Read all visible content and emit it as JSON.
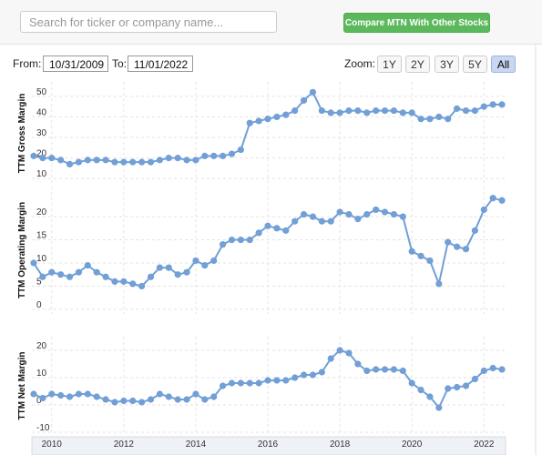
{
  "search_placeholder": "Search for ticker or company name...",
  "compare_button": "Compare MTN With Other Stocks",
  "from_label": "From:",
  "from_date": "10/31/2009",
  "to_label": "To:",
  "to_date": "11/01/2022",
  "zoom_label": "Zoom:",
  "zoom_buttons": [
    "1Y",
    "2Y",
    "3Y",
    "5Y",
    "All"
  ],
  "chart_data": [
    {
      "type": "line",
      "y_label": "TTM Gross Margin",
      "color": "#719fd6",
      "grid": true,
      "x": [
        2009.5,
        2009.75,
        2010,
        2010.25,
        2010.5,
        2010.75,
        2011,
        2011.25,
        2011.5,
        2011.75,
        2012,
        2012.25,
        2012.5,
        2012.75,
        2013,
        2013.25,
        2013.5,
        2013.75,
        2014,
        2014.25,
        2014.5,
        2014.75,
        2015,
        2015.25,
        2015.5,
        2015.75,
        2016,
        2016.25,
        2016.5,
        2016.75,
        2017,
        2017.25,
        2017.5,
        2017.75,
        2018,
        2018.25,
        2018.5,
        2018.75,
        2019,
        2019.25,
        2019.5,
        2019.75,
        2020,
        2020.25,
        2020.5,
        2020.75,
        2021,
        2021.25,
        2021.5,
        2021.75,
        2022,
        2022.25,
        2022.5
      ],
      "values": [
        21,
        20,
        20,
        19,
        17,
        18,
        19,
        19,
        19,
        18,
        18,
        18,
        18,
        18,
        19,
        20,
        20,
        19,
        19,
        21,
        21,
        21,
        22,
        24,
        37,
        38,
        39,
        40,
        41,
        43,
        48,
        52,
        43,
        42,
        42,
        43,
        43,
        42,
        43,
        43,
        43,
        42,
        42,
        39,
        39,
        40,
        39,
        44,
        43,
        43,
        45,
        46,
        46
      ],
      "xlim": [
        2009.45,
        2022.6
      ],
      "xticks": [
        2010,
        2012,
        2014,
        2016,
        2018,
        2020,
        2022
      ],
      "ylim": [
        7,
        57
      ],
      "yticks": [
        10,
        20,
        30,
        40,
        50
      ]
    },
    {
      "type": "line",
      "y_label": "TTM Operating Margin",
      "color": "#719fd6",
      "grid": true,
      "x": [
        2009.5,
        2009.75,
        2010,
        2010.25,
        2010.5,
        2010.75,
        2011,
        2011.25,
        2011.5,
        2011.75,
        2012,
        2012.25,
        2012.5,
        2012.75,
        2013,
        2013.25,
        2013.5,
        2013.75,
        2014,
        2014.25,
        2014.5,
        2014.75,
        2015,
        2015.25,
        2015.5,
        2015.75,
        2016,
        2016.25,
        2016.5,
        2016.75,
        2017,
        2017.25,
        2017.5,
        2017.75,
        2018,
        2018.25,
        2018.5,
        2018.75,
        2019,
        2019.25,
        2019.5,
        2019.75,
        2020,
        2020.25,
        2020.5,
        2020.75,
        2021,
        2021.25,
        2021.5,
        2021.75,
        2022,
        2022.25,
        2022.5
      ],
      "values": [
        10,
        7,
        8,
        7.5,
        7,
        8,
        9.5,
        8,
        7,
        6,
        6,
        5.5,
        5,
        7,
        9,
        9,
        7.5,
        8,
        10.5,
        9.5,
        10.5,
        14,
        15,
        15,
        15,
        16.5,
        18,
        17.5,
        17,
        19,
        20.5,
        20,
        19,
        19,
        21,
        20.5,
        19.5,
        20.5,
        21.5,
        21,
        20.5,
        20,
        12.5,
        11.5,
        10.5,
        5.5,
        14.5,
        13.5,
        13,
        17,
        21.5,
        24,
        23.5
      ],
      "xlim": [
        2009.45,
        2022.6
      ],
      "xticks": [
        2010,
        2012,
        2014,
        2016,
        2018,
        2020,
        2022
      ],
      "ylim": [
        -1,
        26.5
      ],
      "yticks": [
        0,
        5,
        10,
        15,
        20
      ]
    },
    {
      "type": "line",
      "y_label": "TTM Net Margin",
      "color": "#719fd6",
      "grid": true,
      "x": [
        2009.5,
        2009.75,
        2010,
        2010.25,
        2010.5,
        2010.75,
        2011,
        2011.25,
        2011.5,
        2011.75,
        2012,
        2012.25,
        2012.5,
        2012.75,
        2013,
        2013.25,
        2013.5,
        2013.75,
        2014,
        2014.25,
        2014.5,
        2014.75,
        2015,
        2015.25,
        2015.5,
        2015.75,
        2016,
        2016.25,
        2016.5,
        2016.75,
        2017,
        2017.25,
        2017.5,
        2017.75,
        2018,
        2018.25,
        2018.5,
        2018.75,
        2019,
        2019.25,
        2019.5,
        2019.75,
        2020,
        2020.25,
        2020.5,
        2020.75,
        2021,
        2021.25,
        2021.5,
        2021.75,
        2022,
        2022.25,
        2022.5
      ],
      "values": [
        4,
        2.5,
        4,
        3.5,
        3,
        4,
        4,
        3,
        2,
        1,
        1.5,
        1.5,
        1,
        2,
        4,
        3,
        2,
        2,
        4,
        2,
        3,
        7,
        8,
        8,
        8,
        8,
        9,
        9,
        9,
        10,
        11,
        11,
        12,
        17,
        20,
        19,
        15,
        12.5,
        13,
        13,
        13,
        12.5,
        8,
        5.5,
        3,
        -1,
        6,
        6.5,
        7,
        9.5,
        12.5,
        13.5,
        13
      ],
      "xlim": [
        2009.45,
        2022.6
      ],
      "xticks": [
        2010,
        2012,
        2014,
        2016,
        2018,
        2020,
        2022
      ],
      "ylim": [
        -11,
        25
      ],
      "yticks": [
        -10,
        0,
        10,
        20
      ]
    }
  ]
}
